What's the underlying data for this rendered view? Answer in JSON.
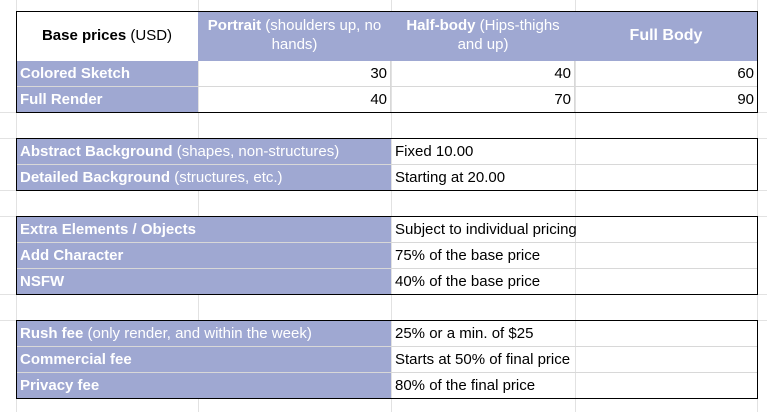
{
  "header": {
    "base_prices_bold": "Base prices",
    "base_prices_rest": " (USD)",
    "portrait_bold": "Portrait",
    "portrait_rest": " (shoulders up, no hands)",
    "halfbody_bold": "Half-body",
    "halfbody_rest": " (Hips-thighs and up)",
    "fullbody": "Full Body"
  },
  "price_rows": [
    {
      "label": "Colored Sketch",
      "portrait": "30",
      "halfbody": "40",
      "fullbody": "60"
    },
    {
      "label": "Full Render",
      "portrait": "40",
      "halfbody": "70",
      "fullbody": "90"
    }
  ],
  "backgrounds": [
    {
      "label_bold": "Abstract Background",
      "label_rest": " (shapes, non-structures)",
      "value": "Fixed 10.00"
    },
    {
      "label_bold": "Detailed Background",
      "label_rest": " (structures, etc.)",
      "value": "Starting at 20.00"
    }
  ],
  "extras": [
    {
      "label_bold": "Extra Elements / Objects",
      "label_rest": "",
      "value": "Subject to individual pricing"
    },
    {
      "label_bold": "Add Character",
      "label_rest": "",
      "value": "75% of the base price"
    },
    {
      "label_bold": "NSFW",
      "label_rest": "",
      "value": "40% of the base price"
    }
  ],
  "fees": [
    {
      "label_bold": "Rush fee",
      "label_rest": " (only render, and within the week)",
      "value": "25% or a min. of $25"
    },
    {
      "label_bold": "Commercial fee",
      "label_rest": "",
      "value": "Starts at 50% of final price"
    },
    {
      "label_bold": "Privacy fee",
      "label_rest": "",
      "value": "80% of the final price"
    }
  ],
  "colors": {
    "header_fill": "#9fa8d2",
    "grid": "#e2e2e2",
    "border": "#000000"
  }
}
